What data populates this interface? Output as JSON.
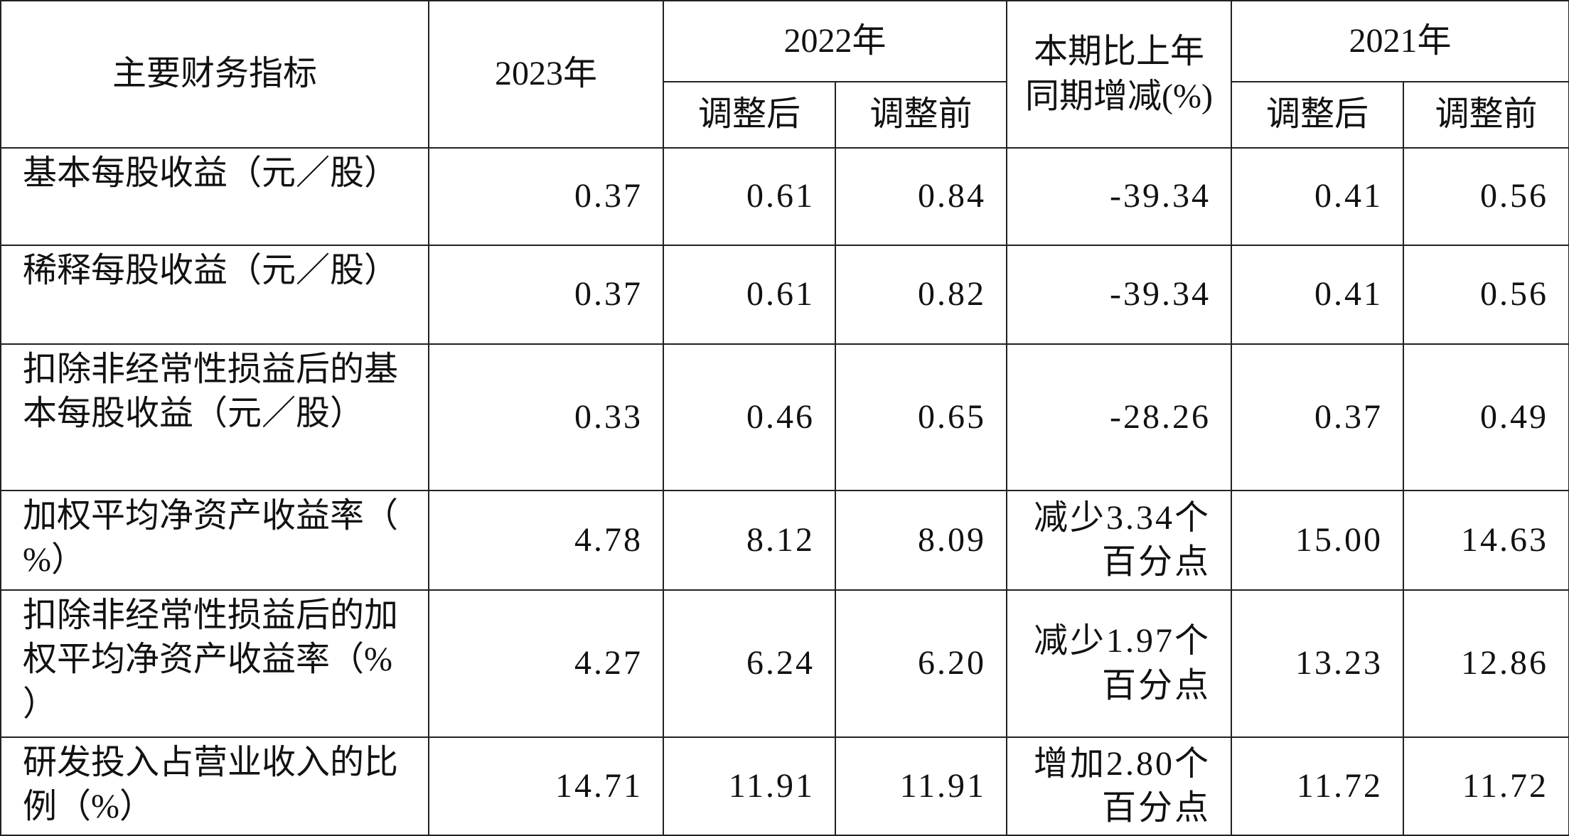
{
  "header": {
    "indicator": "主要财务指标",
    "y2023": "2023年",
    "y2022": "2022年",
    "change": "本期比上年同期增减(%)",
    "y2021": "2021年",
    "sub": [
      "调整后",
      "调整前",
      "调整后",
      "调整前"
    ]
  },
  "table": {
    "rows": [
      [
        "基本每股收益（元／股）",
        "0.37",
        "0.61",
        "0.84",
        "-39.34",
        "0.41",
        "0.56"
      ],
      [
        "稀释每股收益（元／股）",
        "0.37",
        "0.61",
        "0.82",
        "-39.34",
        "0.41",
        "0.56"
      ],
      [
        "扣除非经常性损益后的基本每股收益（元／股）",
        "0.33",
        "0.46",
        "0.65",
        "-28.26",
        "0.37",
        "0.49"
      ],
      [
        "加权平均净资产收益率（%）",
        "4.78",
        "8.12",
        "8.09",
        "减少3.34个百分点",
        "15.00",
        "14.63"
      ],
      [
        "扣除非经常性损益后的加权平均净资产收益率（%）",
        "4.27",
        "6.24",
        "6.20",
        "减少1.97个百分点",
        "13.23",
        "12.86"
      ],
      [
        "研发投入占营业收入的比例（%）",
        "14.71",
        "11.91",
        "11.91",
        "增加2.80个百分点",
        "11.72",
        "11.72"
      ]
    ]
  }
}
